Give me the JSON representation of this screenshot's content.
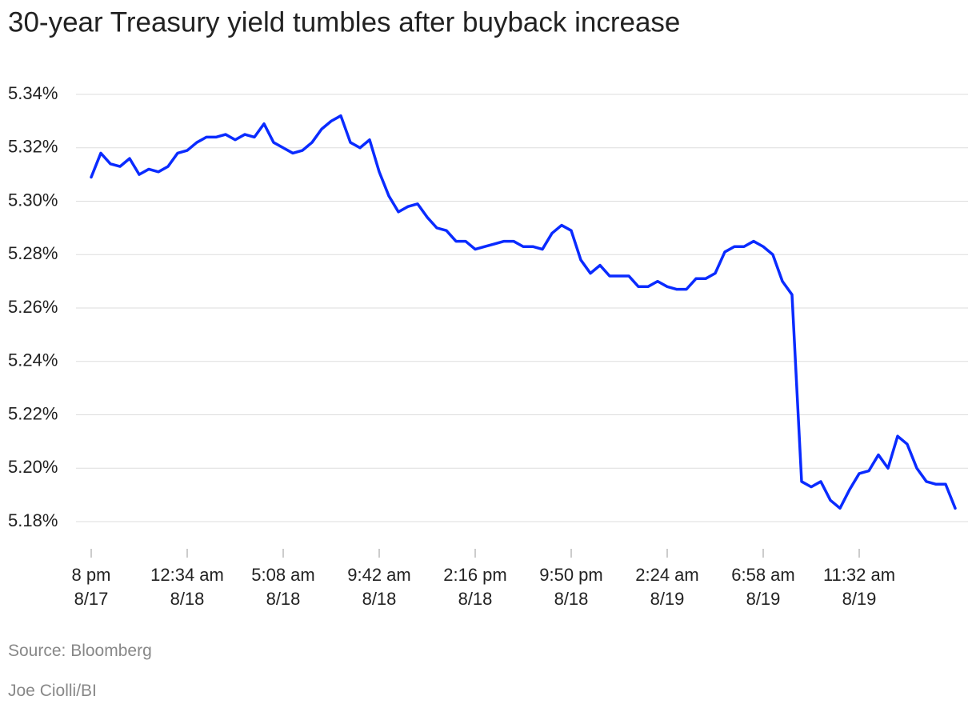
{
  "chart_data": {
    "type": "line",
    "title": "30-year Treasury yield tumbles after buyback increase",
    "source": "Source: Bloomberg",
    "credit": "Joe Ciolli/BI",
    "categories": [
      "8 pm\n8/17",
      null,
      null,
      null,
      null,
      null,
      null,
      null,
      null,
      null,
      "12:34 am\n8/18",
      null,
      null,
      null,
      null,
      null,
      null,
      null,
      null,
      null,
      "5:08 am\n8/18",
      null,
      null,
      null,
      null,
      null,
      null,
      null,
      null,
      null,
      "9:42 am\n8/18",
      null,
      null,
      null,
      null,
      null,
      null,
      null,
      null,
      null,
      "2:16 pm\n8/18",
      null,
      null,
      null,
      null,
      null,
      null,
      null,
      null,
      null,
      "9:50 pm\n8/18",
      null,
      null,
      null,
      null,
      null,
      null,
      null,
      null,
      null,
      "2:24 am\n8/19",
      null,
      null,
      null,
      null,
      null,
      null,
      null,
      null,
      null,
      "6:58 am\n8/19",
      null,
      null,
      null,
      null,
      null,
      null,
      null,
      null,
      null,
      "11:32 am\n8/19",
      null,
      null,
      null,
      null,
      null,
      null,
      null,
      null,
      null,
      null
    ],
    "series": [
      {
        "name": "30-year Treasury yield",
        "color": "#0a2bff",
        "values": [
          5.309,
          5.318,
          5.314,
          5.313,
          5.316,
          5.31,
          5.312,
          5.311,
          5.313,
          5.318,
          5.319,
          5.322,
          5.324,
          5.324,
          5.325,
          5.323,
          5.325,
          5.324,
          5.329,
          5.322,
          5.32,
          5.318,
          5.319,
          5.322,
          5.327,
          5.33,
          5.332,
          5.322,
          5.32,
          5.323,
          5.311,
          5.302,
          5.296,
          5.298,
          5.299,
          5.294,
          5.29,
          5.289,
          5.285,
          5.285,
          5.282,
          5.283,
          5.284,
          5.285,
          5.285,
          5.283,
          5.283,
          5.282,
          5.288,
          5.291,
          5.289,
          5.278,
          5.273,
          5.276,
          5.272,
          5.272,
          5.272,
          5.268,
          5.268,
          5.27,
          5.268,
          5.267,
          5.267,
          5.271,
          5.271,
          5.273,
          5.281,
          5.283,
          5.283,
          5.285,
          5.283,
          5.28,
          5.27,
          5.265,
          5.195,
          5.193,
          5.195,
          5.188,
          5.185,
          5.192,
          5.198,
          5.199,
          5.205,
          5.2,
          5.212,
          5.209,
          5.2,
          5.195,
          5.194,
          5.194,
          5.185
        ]
      }
    ],
    "ylim": [
      5.18,
      5.34
    ],
    "yticks": [
      {
        "value": 5.18,
        "label": "5.18%"
      },
      {
        "value": 5.2,
        "label": "5.20%"
      },
      {
        "value": 5.22,
        "label": "5.22%"
      },
      {
        "value": 5.24,
        "label": "5.24%"
      },
      {
        "value": 5.26,
        "label": "5.26%"
      },
      {
        "value": 5.28,
        "label": "5.28%"
      },
      {
        "value": 5.3,
        "label": "5.30%"
      },
      {
        "value": 5.32,
        "label": "5.32%"
      },
      {
        "value": 5.34,
        "label": "5.34%"
      }
    ],
    "grid": true
  }
}
